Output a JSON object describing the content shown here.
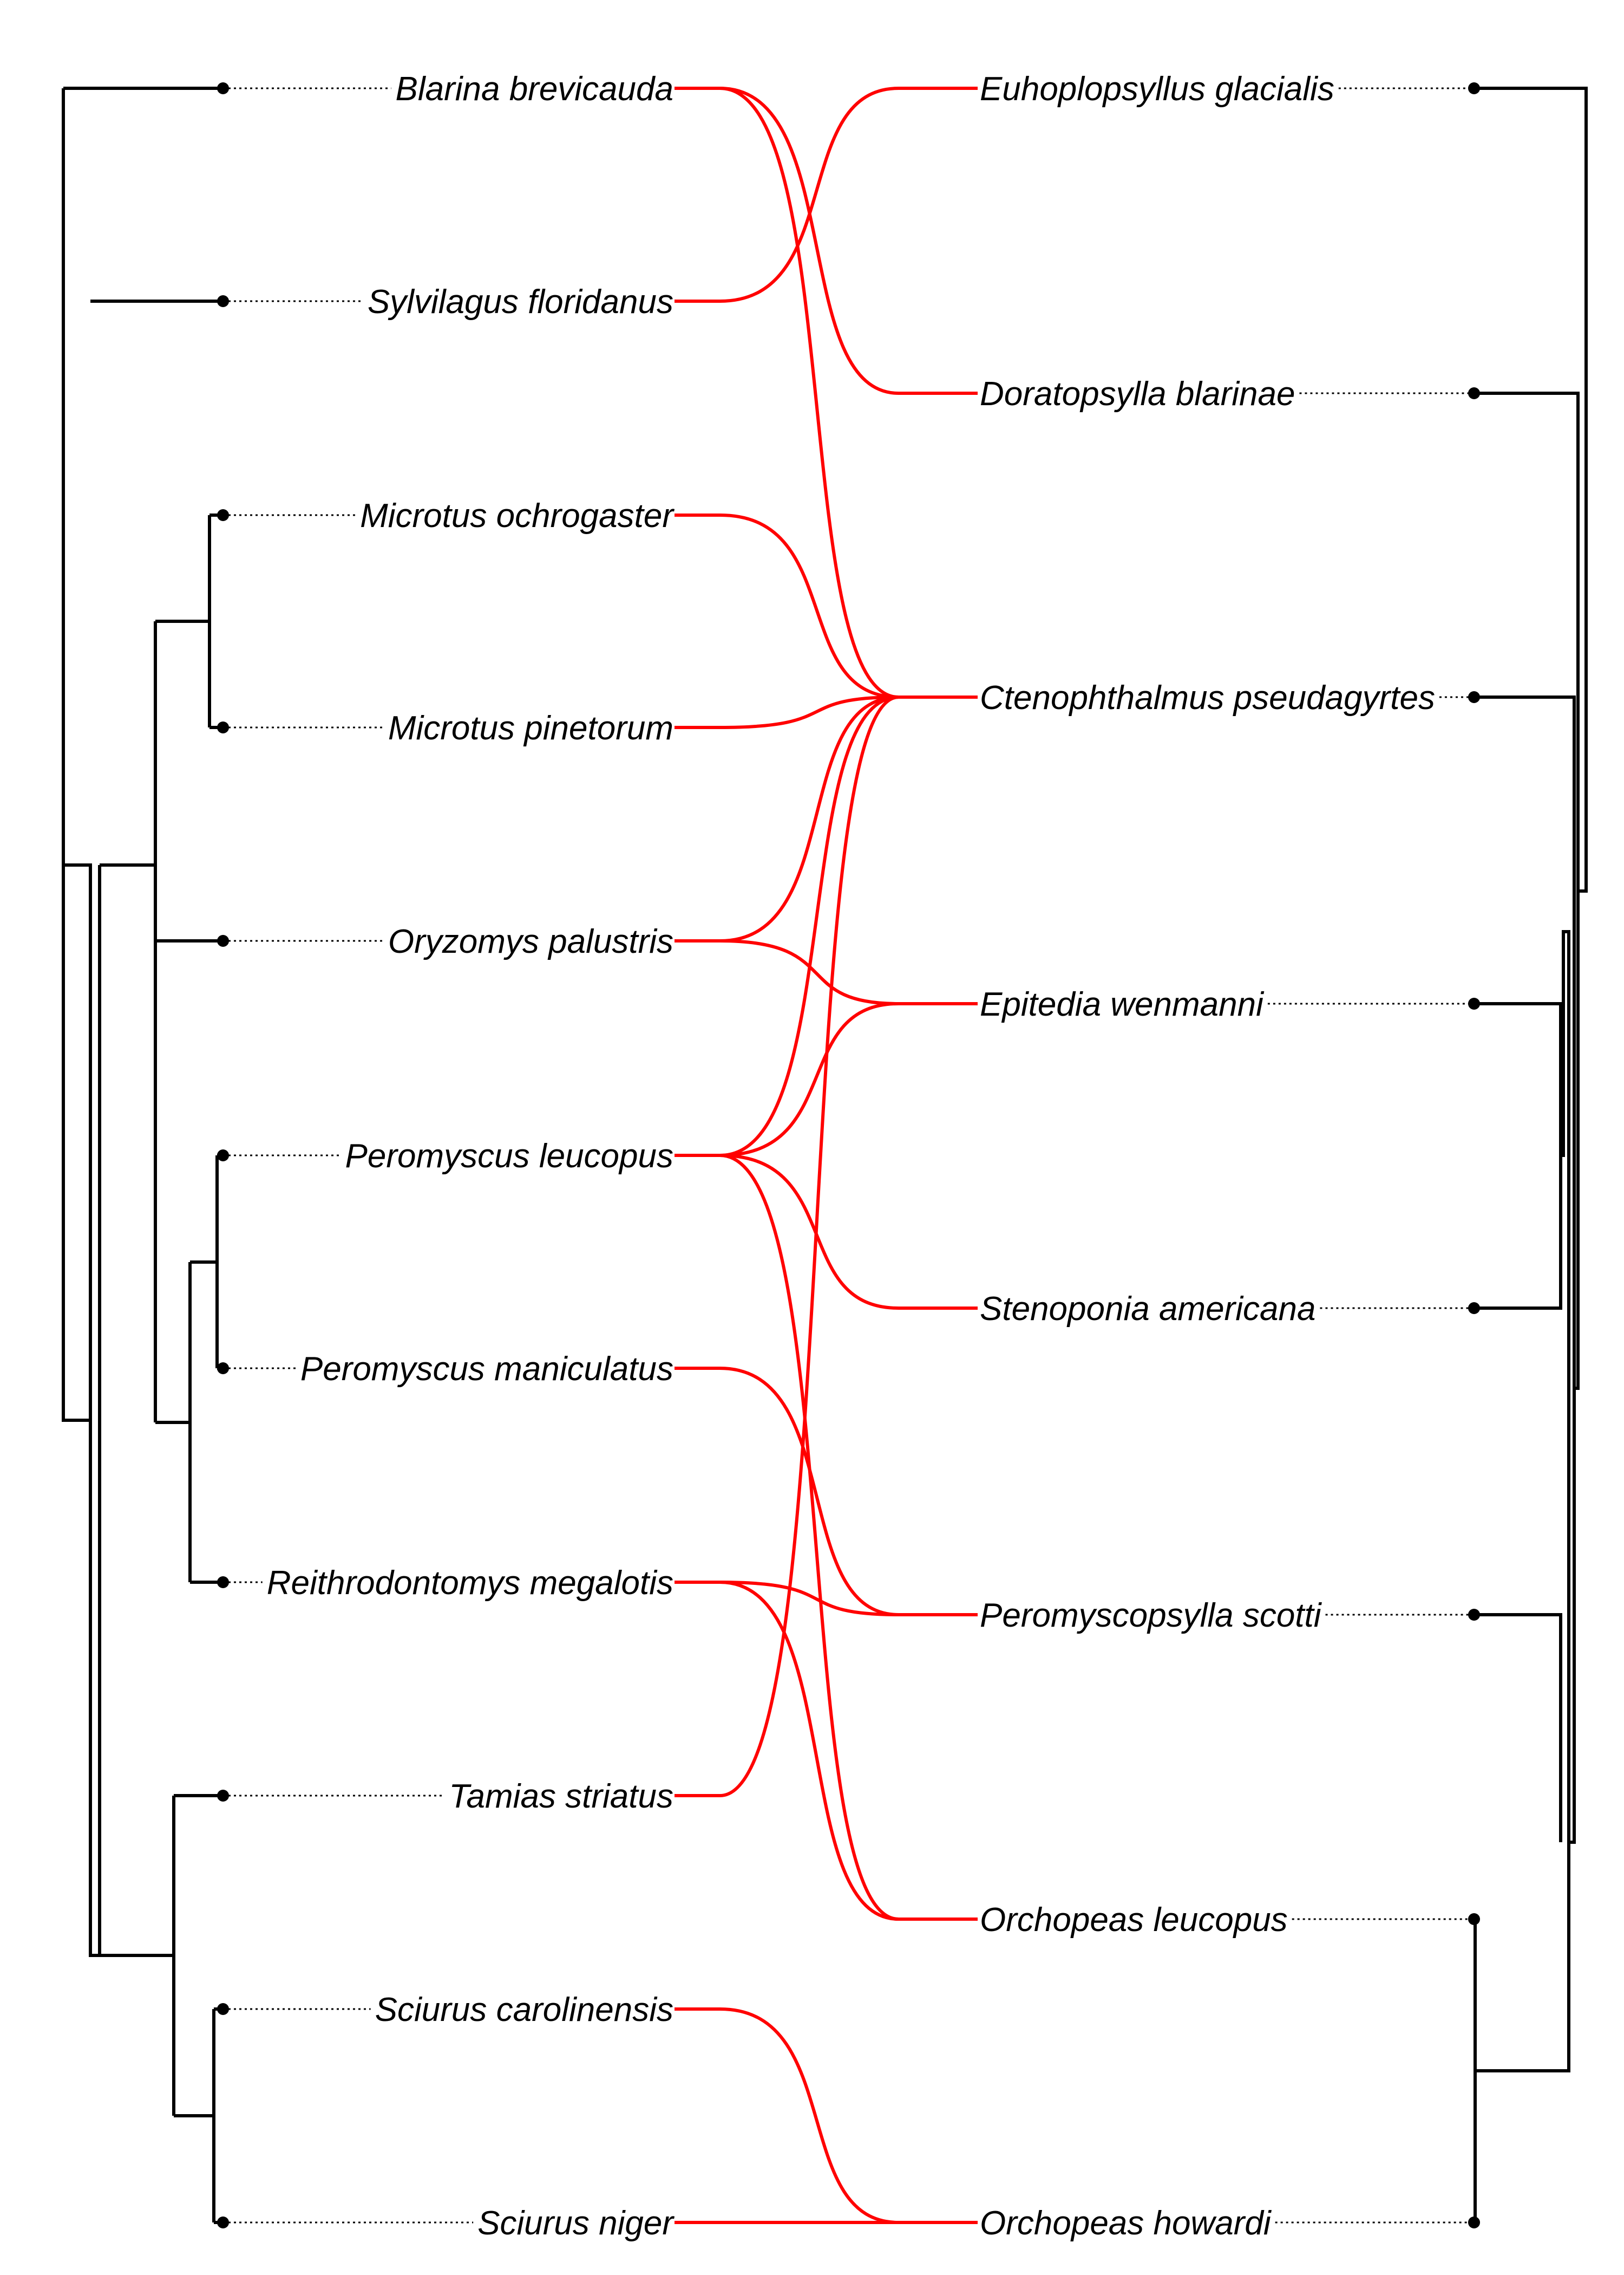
{
  "colors": {
    "tree": "#000000",
    "association": "#ff0000",
    "background": "#ffffff"
  },
  "hosts": [
    "Blarina brevicauda",
    "Sylvilagus floridanus",
    "Microtus ochrogaster",
    "Microtus pinetorum",
    "Oryzomys palustris",
    "Peromyscus leucopus",
    "Peromyscus maniculatus",
    "Reithrodontomys megalotis",
    "Tamias striatus",
    "Sciurus carolinensis",
    "Sciurus niger"
  ],
  "parasites": [
    "Euhoplopsyllus glacialis",
    "Doratopsylla blarinae",
    "Ctenophthalmus pseudagyrtes",
    "Epitedia wenmanni",
    "Stenoponia americana",
    "Peromyscopsylla scotti",
    "Orchopeas leucopus",
    "Orchopeas howardi"
  ],
  "associations": [
    [
      "Blarina brevicauda",
      "Doratopsylla blarinae"
    ],
    [
      "Blarina brevicauda",
      "Ctenophthalmus pseudagyrtes"
    ],
    [
      "Sylvilagus floridanus",
      "Euhoplopsyllus glacialis"
    ],
    [
      "Microtus ochrogaster",
      "Ctenophthalmus pseudagyrtes"
    ],
    [
      "Microtus pinetorum",
      "Ctenophthalmus pseudagyrtes"
    ],
    [
      "Oryzomys palustris",
      "Ctenophthalmus pseudagyrtes"
    ],
    [
      "Oryzomys palustris",
      "Epitedia wenmanni"
    ],
    [
      "Peromyscus leucopus",
      "Ctenophthalmus pseudagyrtes"
    ],
    [
      "Peromyscus leucopus",
      "Epitedia wenmanni"
    ],
    [
      "Peromyscus leucopus",
      "Stenoponia americana"
    ],
    [
      "Peromyscus leucopus",
      "Orchopeas leucopus"
    ],
    [
      "Peromyscus maniculatus",
      "Peromyscopsylla scotti"
    ],
    [
      "Reithrodontomys megalotis",
      "Peromyscopsylla scotti"
    ],
    [
      "Reithrodontomys megalotis",
      "Orchopeas leucopus"
    ],
    [
      "Tamias striatus",
      "Ctenophthalmus pseudagyrtes"
    ],
    [
      "Sciurus carolinensis",
      "Orchopeas howardi"
    ],
    [
      "Sciurus niger",
      "Orchopeas howardi"
    ]
  ]
}
